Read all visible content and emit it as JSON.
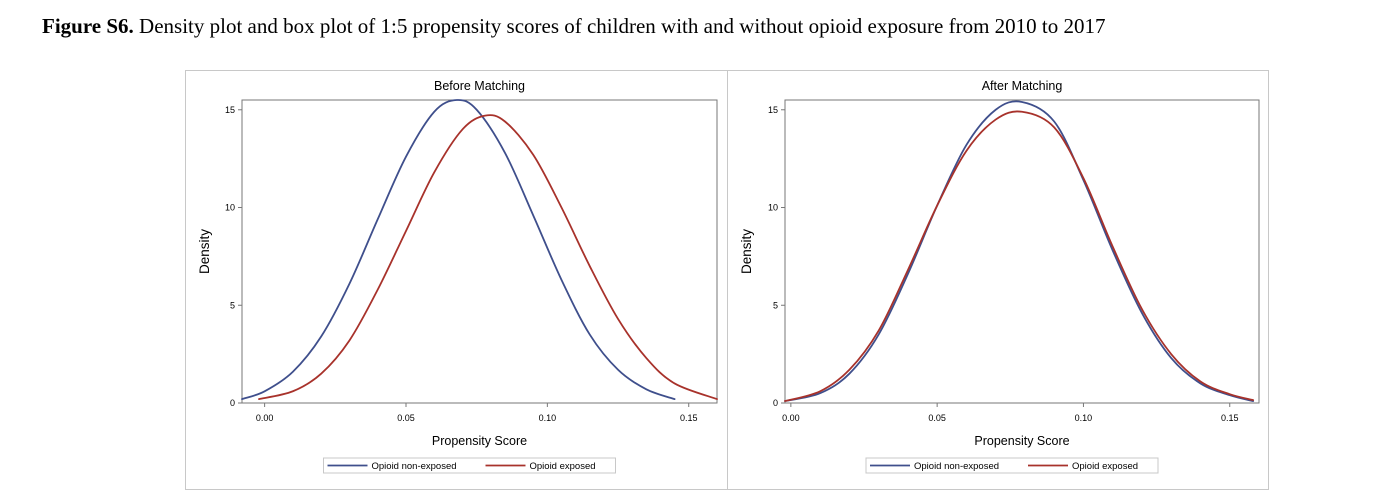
{
  "caption": {
    "label": "Figure S6.",
    "text": " Density plot and box plot of 1:5 propensity scores of children with and without opioid exposure from 2010 to 2017"
  },
  "colors": {
    "non_exposed": "#3f4f8c",
    "exposed": "#a8322b",
    "axis": "#777777"
  },
  "chart_data": [
    {
      "type": "line",
      "title": "Before Matching",
      "xlabel": "Propensity Score",
      "ylabel": "Density",
      "xlim": [
        -0.008,
        0.16
      ],
      "ylim": [
        0,
        15.5
      ],
      "xticks": [
        "0.00",
        "0.05",
        "0.10",
        "0.15"
      ],
      "xtick_values": [
        0.0,
        0.05,
        0.1,
        0.15
      ],
      "yticks": [
        "0",
        "5",
        "10",
        "15"
      ],
      "ytick_values": [
        0,
        5,
        10,
        15
      ],
      "legend_position": "bottom",
      "series": [
        {
          "name": "Opioid non-exposed",
          "color_key": "non_exposed",
          "x": [
            -0.008,
            0.0,
            0.01,
            0.02,
            0.03,
            0.04,
            0.05,
            0.06,
            0.068,
            0.075,
            0.085,
            0.095,
            0.105,
            0.115,
            0.125,
            0.135,
            0.145
          ],
          "y": [
            0.2,
            0.6,
            1.6,
            3.4,
            6.1,
            9.4,
            12.6,
            14.9,
            15.5,
            15.0,
            12.8,
            9.6,
            6.3,
            3.5,
            1.7,
            0.7,
            0.2
          ]
        },
        {
          "name": "Opioid exposed",
          "color_key": "exposed",
          "x": [
            -0.002,
            0.01,
            0.02,
            0.03,
            0.04,
            0.05,
            0.06,
            0.07,
            0.078,
            0.085,
            0.095,
            0.105,
            0.115,
            0.125,
            0.135,
            0.145,
            0.16
          ],
          "y": [
            0.2,
            0.6,
            1.5,
            3.2,
            5.8,
            8.8,
            11.8,
            14.0,
            14.7,
            14.4,
            12.7,
            10.0,
            7.0,
            4.3,
            2.3,
            1.0,
            0.2
          ]
        }
      ]
    },
    {
      "type": "line",
      "title": "After Matching",
      "xlabel": "Propensity Score",
      "ylabel": "Density",
      "xlim": [
        -0.002,
        0.16
      ],
      "ylim": [
        0,
        15.5
      ],
      "xticks": [
        "0.00",
        "0.05",
        "0.10",
        "0.15"
      ],
      "xtick_values": [
        0.0,
        0.05,
        0.1,
        0.15
      ],
      "yticks": [
        "0",
        "5",
        "10",
        "15"
      ],
      "ytick_values": [
        0,
        5,
        10,
        15
      ],
      "legend_position": "bottom",
      "series": [
        {
          "name": "Opioid non-exposed",
          "color_key": "non_exposed",
          "x": [
            -0.002,
            0.01,
            0.02,
            0.03,
            0.04,
            0.05,
            0.06,
            0.07,
            0.079,
            0.09,
            0.1,
            0.11,
            0.12,
            0.13,
            0.14,
            0.15,
            0.158
          ],
          "y": [
            0.1,
            0.5,
            1.5,
            3.5,
            6.6,
            10.1,
            13.2,
            15.0,
            15.4,
            14.4,
            11.4,
            7.8,
            4.6,
            2.3,
            1.0,
            0.4,
            0.1
          ]
        },
        {
          "name": "Opioid exposed",
          "color_key": "exposed",
          "x": [
            -0.002,
            0.01,
            0.02,
            0.03,
            0.04,
            0.05,
            0.06,
            0.07,
            0.079,
            0.09,
            0.1,
            0.11,
            0.12,
            0.13,
            0.14,
            0.15,
            0.158
          ],
          "y": [
            0.1,
            0.6,
            1.7,
            3.7,
            6.8,
            10.1,
            12.9,
            14.5,
            14.9,
            14.1,
            11.5,
            8.0,
            4.8,
            2.5,
            1.1,
            0.45,
            0.15
          ]
        }
      ]
    }
  ]
}
